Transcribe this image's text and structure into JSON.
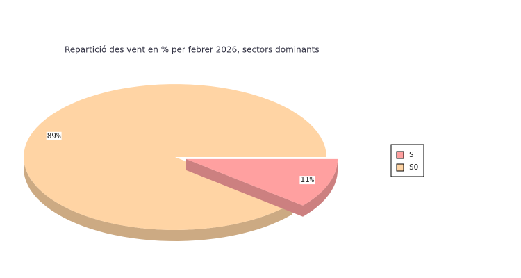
{
  "chart_data": {
    "type": "pie",
    "title": "Repartició des vent en % per febrer 2026, sectors dominants",
    "categories": [
      "S",
      "SO"
    ],
    "values": [
      11,
      89
    ],
    "value_labels": [
      "11%",
      "89%"
    ],
    "colors": [
      "#ffa0a0",
      "#ffd4a4"
    ],
    "exploded": [
      true,
      false
    ],
    "legend": "right"
  }
}
